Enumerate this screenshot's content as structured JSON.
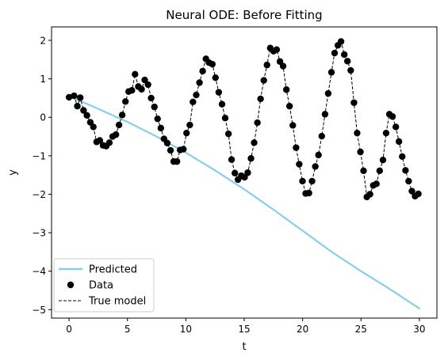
{
  "chart_data": {
    "type": "line",
    "title": "Neural ODE: Before Fitting",
    "xlabel": "t",
    "ylabel": "y",
    "xlim": [
      -1.5,
      31.5
    ],
    "ylim": [
      -5.22,
      2.35
    ],
    "xticks": [
      0,
      5,
      10,
      15,
      20,
      25,
      30
    ],
    "xtick_labels": [
      "0",
      "5",
      "10",
      "15",
      "20",
      "25",
      "30"
    ],
    "yticks": [
      2,
      1,
      0,
      -1,
      -2,
      -3,
      -4,
      -5
    ],
    "ytick_labels": [
      "2",
      "1",
      "0",
      "−1",
      "−2",
      "−3",
      "−4",
      "−5"
    ],
    "grid": false,
    "legend_position": "lower-left",
    "series": [
      {
        "name": "Predicted",
        "kind": "line",
        "color": "#87ceeb",
        "x": [
          0,
          2.5,
          5,
          7.5,
          10,
          12.5,
          15,
          17.5,
          20,
          22.5,
          25,
          27.5,
          30
        ],
        "y": [
          0.55,
          0.22,
          -0.12,
          -0.5,
          -0.92,
          -1.38,
          -1.87,
          -2.4,
          -2.95,
          -3.5,
          -4.0,
          -4.47,
          -4.97
        ]
      },
      {
        "name": "Data",
        "kind": "scatter",
        "color": "#000000",
        "x": [
          0.0,
          0.43,
          0.71,
          0.96,
          1.24,
          1.53,
          1.82,
          2.08,
          2.36,
          2.63,
          2.91,
          3.18,
          3.45,
          3.73,
          4.01,
          4.28,
          4.55,
          4.83,
          5.1,
          5.38,
          5.65,
          5.93,
          6.21,
          6.48,
          6.76,
          7.03,
          7.31,
          7.58,
          7.86,
          8.13,
          8.41,
          8.69,
          8.96,
          9.24,
          9.51,
          9.79,
          10.06,
          10.34,
          10.61,
          10.89,
          11.17,
          11.44,
          11.72,
          11.99,
          12.27,
          12.54,
          12.82,
          13.1,
          13.37,
          13.65,
          13.92,
          14.2,
          14.47,
          14.75,
          15.03,
          15.3,
          15.58,
          15.85,
          16.13,
          16.4,
          16.68,
          16.95,
          17.23,
          17.51,
          17.78,
          18.06,
          18.33,
          18.61,
          18.88,
          19.16,
          19.44,
          19.71,
          19.99,
          20.26,
          20.54,
          20.81,
          21.09,
          21.36,
          21.64,
          21.92,
          22.19,
          22.47,
          22.74,
          23.02,
          23.29,
          23.57,
          23.84,
          24.12,
          24.4,
          24.67,
          24.95,
          25.22,
          25.5,
          25.77,
          26.05,
          26.32,
          26.6,
          26.88,
          27.15,
          27.43,
          27.7,
          27.98,
          28.25,
          28.53,
          28.81,
          29.08,
          29.36,
          29.63,
          29.91
        ],
        "y": [
          0.52,
          0.56,
          0.29,
          0.51,
          0.18,
          0.05,
          -0.13,
          -0.25,
          -0.64,
          -0.6,
          -0.73,
          -0.75,
          -0.66,
          -0.5,
          -0.45,
          -0.2,
          0.06,
          0.41,
          0.67,
          0.7,
          1.12,
          0.8,
          0.73,
          0.97,
          0.85,
          0.5,
          0.27,
          -0.04,
          -0.28,
          -0.56,
          -0.67,
          -0.86,
          -1.15,
          -1.15,
          -0.85,
          -0.83,
          -0.41,
          -0.2,
          0.4,
          0.58,
          0.9,
          1.2,
          1.52,
          1.42,
          1.38,
          1.03,
          0.65,
          0.34,
          -0.02,
          -0.43,
          -1.1,
          -1.45,
          -1.62,
          -1.52,
          -1.56,
          -1.44,
          -1.07,
          -0.66,
          -0.14,
          0.48,
          0.96,
          1.36,
          1.8,
          1.72,
          1.76,
          1.45,
          1.33,
          0.72,
          0.29,
          -0.21,
          -0.79,
          -1.22,
          -1.66,
          -1.98,
          -1.97,
          -1.66,
          -1.28,
          -0.98,
          -0.49,
          0.08,
          0.62,
          1.17,
          1.67,
          1.87,
          1.97,
          1.63,
          1.46,
          1.22,
          0.38,
          -0.41,
          -0.9,
          -1.39,
          -2.07,
          -2.0,
          -1.77,
          -1.73,
          -1.39,
          -1.11,
          -0.41,
          0.08,
          0.02,
          -0.25,
          -0.63,
          -1.02,
          -1.38,
          -1.66,
          -1.92,
          -2.05,
          -1.99
        ]
      },
      {
        "name": "True model",
        "kind": "dashed-line",
        "color": "#000000"
      }
    ]
  },
  "colors": {
    "predicted": "#87ceeb",
    "data": "#000000",
    "true_model": "#000000",
    "axes": "#000000",
    "background": "#ffffff"
  }
}
